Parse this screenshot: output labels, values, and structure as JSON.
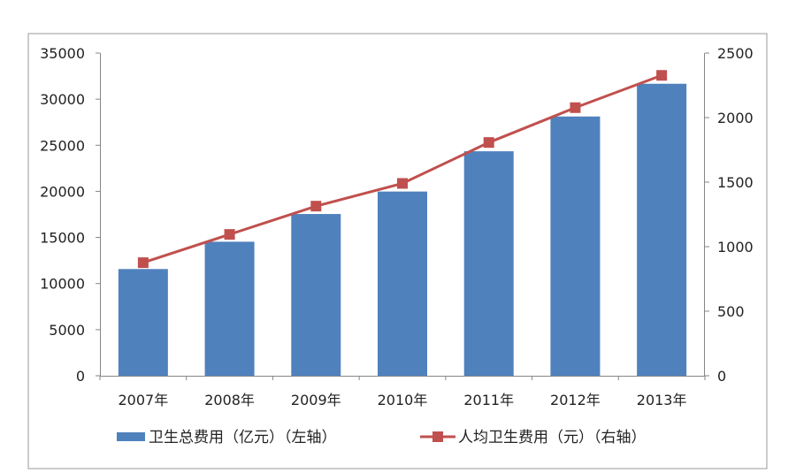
{
  "chart_data": {
    "type": "bar",
    "categories": [
      "2007年",
      "2008年",
      "2009年",
      "2010年",
      "2011年",
      "2012年",
      "2013年"
    ],
    "series": [
      {
        "name": "卫生总费用（亿元）（左轴）",
        "type": "bar",
        "axis": "left",
        "color": "#4F81BD",
        "values": [
          11574,
          14535,
          17542,
          19980,
          24346,
          28119,
          31669
        ]
      },
      {
        "name": "人均卫生费用（元）（右轴）",
        "type": "line",
        "axis": "right",
        "color": "#C0504D",
        "values": [
          876,
          1095,
          1314,
          1490,
          1807,
          2077,
          2327
        ]
      }
    ],
    "y_left": {
      "min": 0,
      "max": 35000,
      "ticks": [
        0,
        5000,
        10000,
        15000,
        20000,
        25000,
        30000,
        35000
      ]
    },
    "y_right": {
      "min": 0,
      "max": 2500,
      "ticks": [
        0,
        500,
        1000,
        1500,
        2000,
        2500
      ]
    },
    "grid": false,
    "legend_position": "bottom"
  }
}
